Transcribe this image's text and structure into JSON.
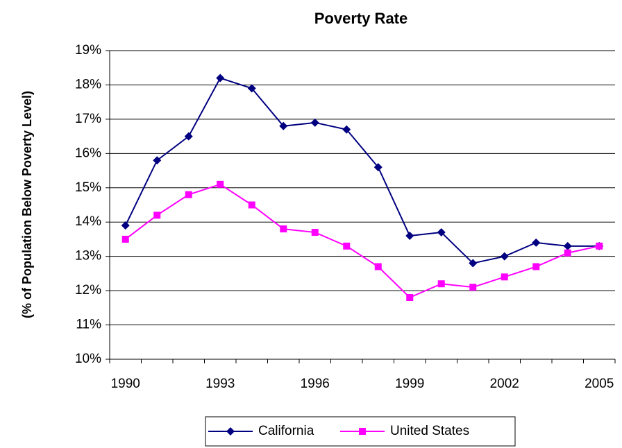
{
  "chart_data": {
    "type": "line",
    "title": "Poverty Rate",
    "y_label": "(% of Population Below Poverty Level)",
    "categories": [
      "1990",
      null,
      null,
      "1993",
      null,
      null,
      "1996",
      null,
      null,
      "1999",
      null,
      null,
      "2002",
      null,
      null,
      "2005"
    ],
    "series": [
      {
        "name": "California",
        "color": "#000080",
        "marker": "diamond",
        "values": [
          13.9,
          15.8,
          16.5,
          18.2,
          17.9,
          16.8,
          16.9,
          16.7,
          15.6,
          13.6,
          13.7,
          12.8,
          13.0,
          13.4,
          13.3,
          13.3
        ]
      },
      {
        "name": "United States",
        "color": "#ff00ff",
        "marker": "square",
        "values": [
          13.5,
          14.2,
          14.8,
          15.1,
          14.5,
          13.8,
          13.7,
          13.3,
          12.7,
          11.8,
          12.2,
          12.1,
          12.4,
          12.7,
          13.1,
          13.3
        ]
      }
    ],
    "ylim": [
      10,
      19
    ],
    "yticks": [
      {
        "value": 10,
        "label": "10%"
      },
      {
        "value": 11,
        "label": "11%"
      },
      {
        "value": 12,
        "label": "12%"
      },
      {
        "value": 13,
        "label": "13%"
      },
      {
        "value": 14,
        "label": "14%"
      },
      {
        "value": 15,
        "label": "15%"
      },
      {
        "value": 16,
        "label": "16%"
      },
      {
        "value": 17,
        "label": "17%"
      },
      {
        "value": 18,
        "label": "18%"
      },
      {
        "value": 19,
        "label": "19%"
      }
    ],
    "grid": true,
    "legend": "bottom"
  }
}
